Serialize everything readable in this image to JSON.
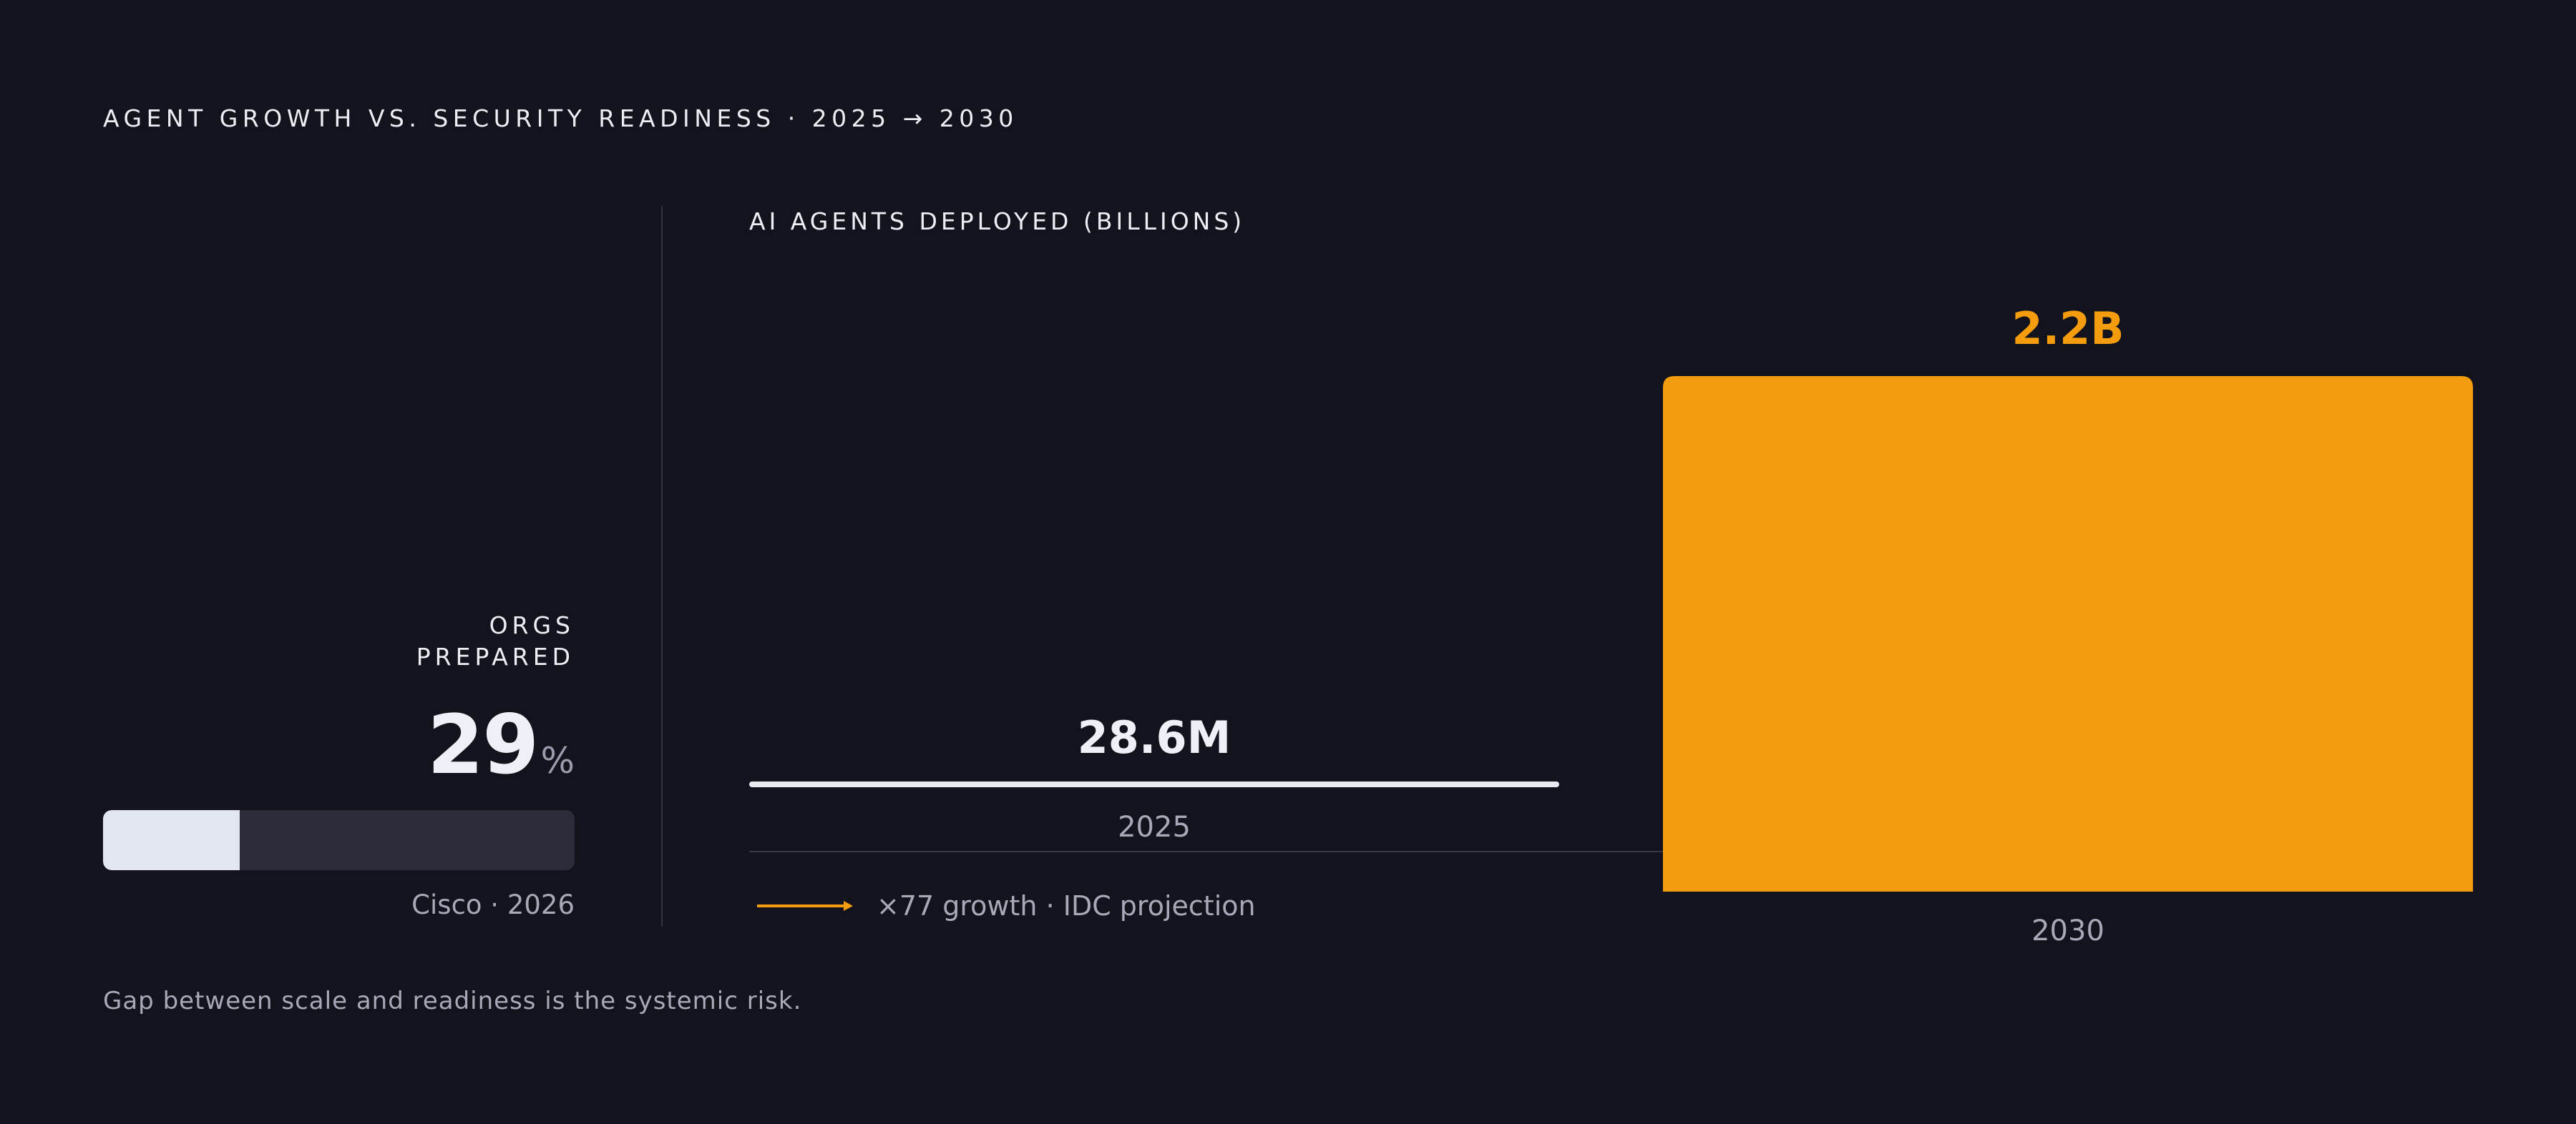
{
  "title": "AGENT GROWTH VS. SECURITY READINESS · 2025 → 2030",
  "metric": {
    "label_line1": "ORGS",
    "label_line2": "PREPARED",
    "value": "29",
    "unit": "%",
    "fraction": 0.29,
    "source": "Cisco · 2026"
  },
  "growth_note": "×77 growth · IDC projection",
  "footnote": "Gap between scale and readiness is the systemic risk.",
  "colors": {
    "accent": "#f39c0e",
    "bar_2025": "#e8eaf2",
    "background": "#13131d"
  },
  "chart_data": {
    "type": "bar",
    "subtitle": "AI AGENTS DEPLOYED (BILLIONS)",
    "categories": [
      "2025",
      "2030"
    ],
    "values": [
      0.0286,
      2.2
    ],
    "value_labels": [
      "28.6M",
      "2.2B"
    ],
    "ylim": [
      0,
      2.2
    ],
    "grid": false
  }
}
